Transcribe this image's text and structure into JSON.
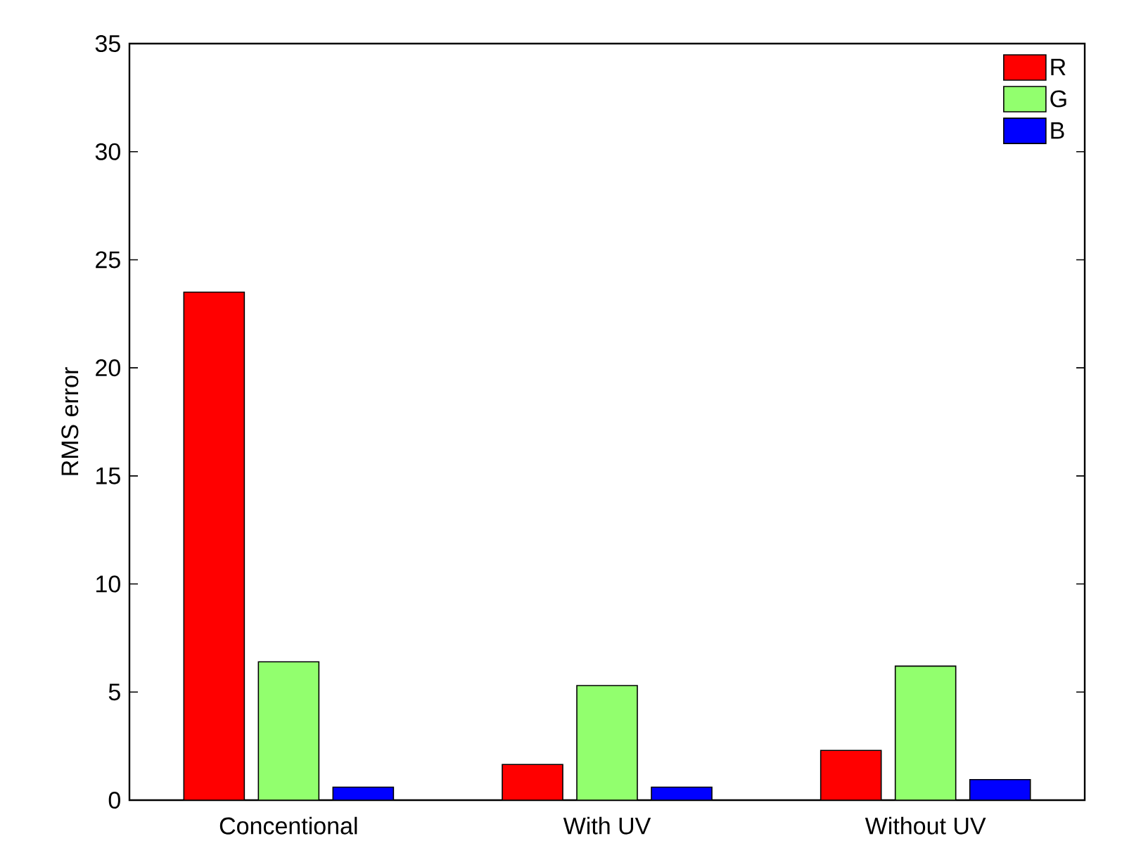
{
  "chart_data": {
    "type": "bar",
    "ylabel": "RMS error",
    "categories": [
      "Concentional",
      "With UV",
      "Without UV"
    ],
    "series": [
      {
        "name": "R",
        "color": "#ff0000",
        "values": [
          23.5,
          1.65,
          2.3
        ]
      },
      {
        "name": "G",
        "color": "#92ff6e",
        "values": [
          6.4,
          5.3,
          6.2
        ]
      },
      {
        "name": "B",
        "color": "#0000ff",
        "values": [
          0.6,
          0.6,
          0.95
        ]
      }
    ],
    "ylim": [
      0,
      35
    ],
    "yticks": [
      0,
      5,
      10,
      15,
      20,
      25,
      30,
      35
    ],
    "grid": false,
    "legend": "top right"
  }
}
